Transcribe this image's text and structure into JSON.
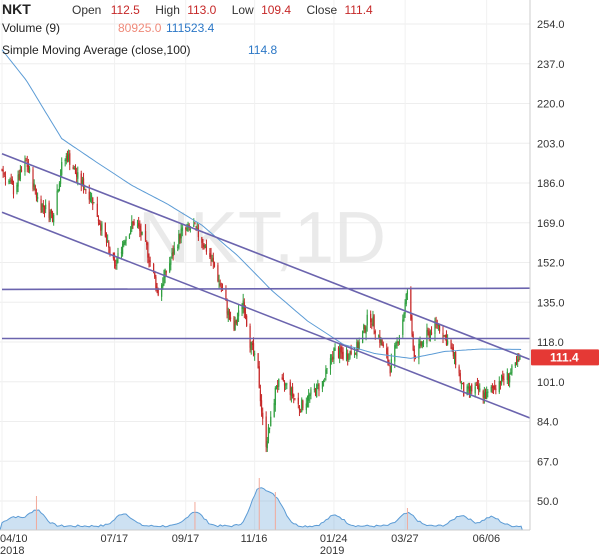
{
  "header": {
    "ticker": "NKT",
    "open_label": "Open",
    "open": "112.5",
    "high_label": "High",
    "high": "113.0",
    "low_label": "Low",
    "low": "109.4",
    "close_label": "Close",
    "close": "111.4",
    "volume_label": "Volume (9)",
    "volume_a": "80925.0",
    "volume_b": "111523.4",
    "sma_label": "Simple Moving Average (close,100)",
    "sma_value": "114.8"
  },
  "watermark": "NKT,1D",
  "last_price_tag": "111.4",
  "colors": {
    "up": "#2e9e3e",
    "down": "#c62828",
    "sma": "#5b9bd5",
    "trend": "#6b64ae",
    "tag": "#e53935",
    "volume": "#5b9bd5"
  },
  "chart_data": {
    "type": "candlestick",
    "y_axis": {
      "range": [
        45,
        260
      ],
      "ticks": [
        50.0,
        67.0,
        84.0,
        101.0,
        118.0,
        135.0,
        152.0,
        169.0,
        186.0,
        203.0,
        220.0,
        237.0,
        254.0
      ]
    },
    "x_axis": {
      "range": [
        "2018-04-10",
        "2019-07-12"
      ],
      "ticks": [
        {
          "date": "2018-04-10",
          "label": "04/10",
          "sub": "2018"
        },
        {
          "date": "2018-07-17",
          "label": "07/17",
          "sub": ""
        },
        {
          "date": "2018-09-17",
          "label": "09/17",
          "sub": ""
        },
        {
          "date": "2018-11-16",
          "label": "11/16",
          "sub": ""
        },
        {
          "date": "2019-01-24",
          "label": "01/24",
          "sub": "2019"
        },
        {
          "date": "2019-03-27",
          "label": "03/27",
          "sub": ""
        },
        {
          "date": "2019-06-06",
          "label": "06/06",
          "sub": ""
        }
      ]
    },
    "price_anchors": [
      [
        "2018-04-10",
        192
      ],
      [
        "2018-04-20",
        183
      ],
      [
        "2018-05-01",
        195
      ],
      [
        "2018-05-12",
        178
      ],
      [
        "2018-05-24",
        172
      ],
      [
        "2018-06-01",
        193
      ],
      [
        "2018-06-06",
        198
      ],
      [
        "2018-06-14",
        189
      ],
      [
        "2018-06-27",
        180
      ],
      [
        "2018-07-05",
        168
      ],
      [
        "2018-07-17",
        150
      ],
      [
        "2018-07-26",
        163
      ],
      [
        "2018-08-04",
        170
      ],
      [
        "2018-08-14",
        158
      ],
      [
        "2018-08-24",
        139
      ],
      [
        "2018-09-03",
        152
      ],
      [
        "2018-09-13",
        165
      ],
      [
        "2018-09-24",
        167
      ],
      [
        "2018-10-03",
        160
      ],
      [
        "2018-10-12",
        150
      ],
      [
        "2018-10-20",
        138
      ],
      [
        "2018-10-28",
        122
      ],
      [
        "2018-11-06",
        136
      ],
      [
        "2018-11-12",
        118
      ],
      [
        "2018-11-19",
        105
      ],
      [
        "2018-11-25",
        73
      ],
      [
        "2018-11-30",
        84
      ],
      [
        "2018-12-05",
        100
      ],
      [
        "2018-12-15",
        99
      ],
      [
        "2018-12-25",
        90
      ],
      [
        "2019-01-05",
        96
      ],
      [
        "2019-01-15",
        101
      ],
      [
        "2019-01-24",
        114
      ],
      [
        "2019-02-03",
        112
      ],
      [
        "2019-02-14",
        116
      ],
      [
        "2019-02-24",
        130
      ],
      [
        "2019-03-06",
        118
      ],
      [
        "2019-03-14",
        107
      ],
      [
        "2019-03-24",
        125
      ],
      [
        "2019-03-29",
        140
      ],
      [
        "2019-04-04",
        112
      ],
      [
        "2019-04-14",
        120
      ],
      [
        "2019-04-24",
        126
      ],
      [
        "2019-05-03",
        118
      ],
      [
        "2019-05-10",
        110
      ],
      [
        "2019-05-17",
        96
      ],
      [
        "2019-05-27",
        98
      ],
      [
        "2019-06-06",
        95
      ],
      [
        "2019-06-16",
        101
      ],
      [
        "2019-06-26",
        104
      ],
      [
        "2019-07-07",
        111.4
      ]
    ],
    "sma_anchors": [
      [
        "2018-04-10",
        243
      ],
      [
        "2018-05-01",
        230
      ],
      [
        "2018-06-01",
        205
      ],
      [
        "2018-07-01",
        195
      ],
      [
        "2018-08-01",
        185
      ],
      [
        "2018-09-01",
        177
      ],
      [
        "2018-10-01",
        168
      ],
      [
        "2018-11-01",
        155
      ],
      [
        "2018-12-01",
        140
      ],
      [
        "2019-01-01",
        127
      ],
      [
        "2019-02-01",
        117
      ],
      [
        "2019-03-01",
        113
      ],
      [
        "2019-04-01",
        111
      ],
      [
        "2019-05-01",
        114
      ],
      [
        "2019-06-01",
        115
      ],
      [
        "2019-07-07",
        114.8
      ]
    ],
    "trendlines": [
      {
        "from": [
          "2018-04-10",
          198.5
        ],
        "to": [
          "2019-07-12",
          110.5
        ]
      },
      {
        "from": [
          "2018-04-10",
          173.5
        ],
        "to": [
          "2019-07-12",
          85.5
        ]
      },
      {
        "from": [
          "2018-04-10",
          140.5
        ],
        "to": [
          "2019-07-12",
          141.0
        ]
      },
      {
        "from": [
          "2018-04-10",
          119.5
        ],
        "to": [
          "2019-07-12",
          119.5
        ]
      }
    ],
    "volume_peaks": [
      [
        "2018-04-20",
        0.25
      ],
      [
        "2018-05-10",
        0.45
      ],
      [
        "2018-07-25",
        0.35
      ],
      [
        "2018-09-25",
        0.4
      ],
      [
        "2018-11-20",
        1.0
      ],
      [
        "2018-12-05",
        0.7
      ],
      [
        "2019-01-25",
        0.3
      ],
      [
        "2019-03-29",
        0.35
      ],
      [
        "2019-05-15",
        0.3
      ],
      [
        "2019-06-10",
        0.25
      ]
    ],
    "last_close": 111.4
  }
}
